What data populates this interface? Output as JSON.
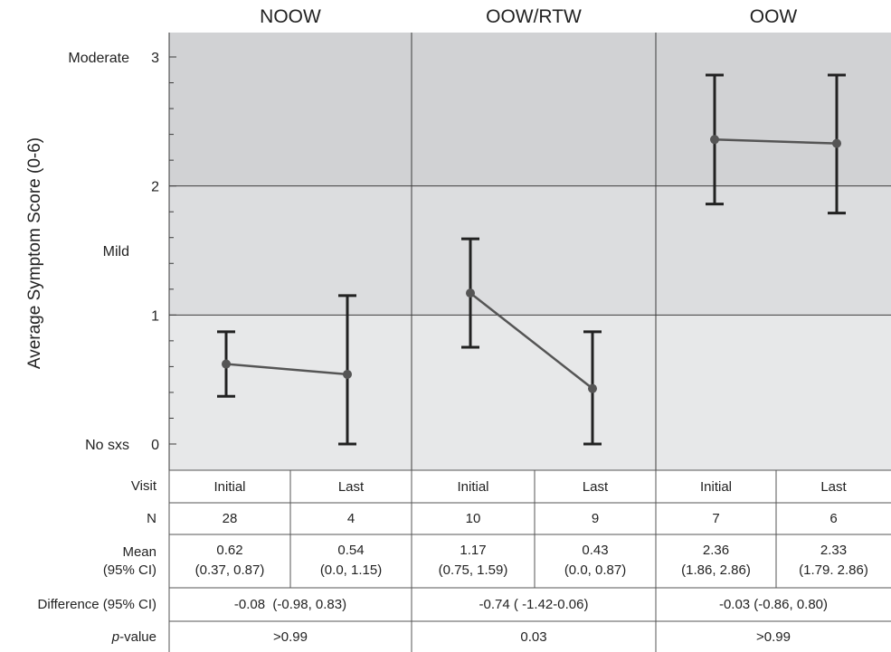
{
  "chart_data": {
    "type": "line",
    "ylabel": "Average Symptom Score (0-6)",
    "ylim": [
      -0.2,
      3.2
    ],
    "y_ticks": [
      0,
      1,
      2,
      3
    ],
    "y_minor_step": 0.2,
    "y_level_labels": [
      {
        "value": 0,
        "label": "No sxs"
      },
      {
        "value": 1.5,
        "label": "Mild"
      },
      {
        "value": 3,
        "label": "Moderate"
      }
    ],
    "bands": [
      {
        "from": -0.2,
        "to": 1,
        "color": "#e7e8e9"
      },
      {
        "from": 1,
        "to": 2,
        "color": "#dcdddf"
      },
      {
        "from": 2,
        "to": 3.2,
        "color": "#d1d2d4"
      }
    ],
    "grid": true,
    "panels": [
      {
        "title": "NOOW",
        "x": [
          "Initial",
          "Last"
        ],
        "mean": [
          0.62,
          0.54
        ],
        "ci_low": [
          0.37,
          0.0
        ],
        "ci_high": [
          0.87,
          1.15
        ],
        "n": [
          "28",
          "4"
        ],
        "mean_text": [
          "0.62",
          "0.54"
        ],
        "ci_text": [
          "(0.37, 0.87)",
          "(0.0, 1.15)"
        ],
        "difference": "-0.08  (-0.98, 0.83)",
        "p_value": ">0.99"
      },
      {
        "title": "OOW/RTW",
        "x": [
          "Initial",
          "Last"
        ],
        "mean": [
          1.17,
          0.43
        ],
        "ci_low": [
          0.75,
          0.0
        ],
        "ci_high": [
          1.59,
          0.87
        ],
        "n": [
          "10",
          "9"
        ],
        "mean_text": [
          "1.17",
          "0.43"
        ],
        "ci_text": [
          "(0.75, 1.59)",
          "(0.0, 0.87)"
        ],
        "difference": "-0.74 ( -1.42-0.06)",
        "p_value": "0.03"
      },
      {
        "title": "OOW",
        "x": [
          "Initial",
          "Last"
        ],
        "mean": [
          2.36,
          2.33
        ],
        "ci_low": [
          1.86,
          1.79
        ],
        "ci_high": [
          2.86,
          2.86
        ],
        "n": [
          "7",
          "6"
        ],
        "mean_text": [
          "2.36",
          "2.33"
        ],
        "ci_text": [
          "(1.86, 2.86)",
          "(1.79. 2.86)"
        ],
        "difference": "-0.03 (-0.86, 0.80)",
        "p_value": ">0.99"
      }
    ],
    "row_labels": {
      "visit": "Visit",
      "n": "N",
      "mean": "Mean",
      "mean_ci": "(95% CI)",
      "difference": "Difference (95% CI)",
      "p_value_italic": "p",
      "p_value_rest": "-value"
    },
    "colors": {
      "line": "#555555",
      "marker": "#555555",
      "errorbar": "#222222",
      "grid": "#3c3c3c"
    }
  }
}
